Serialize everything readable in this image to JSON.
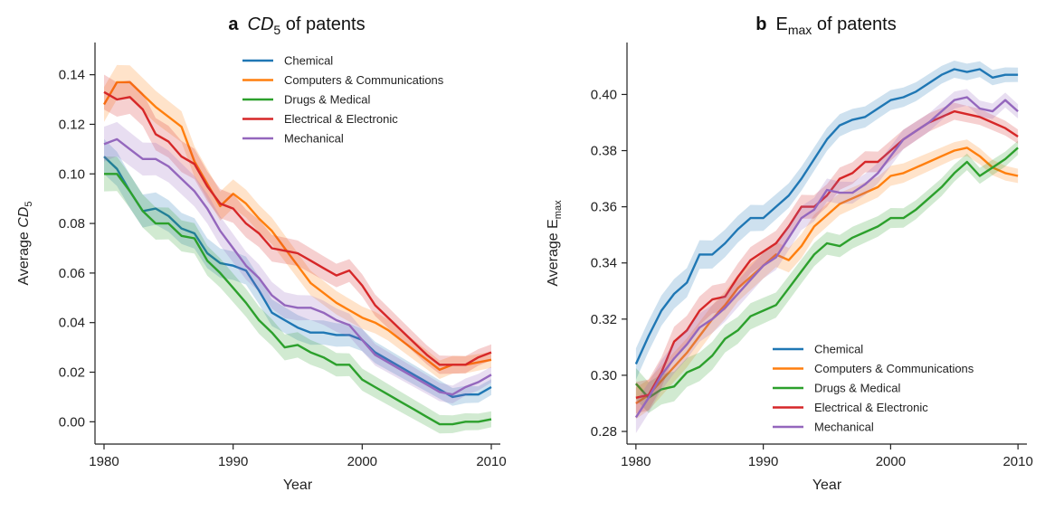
{
  "colors": {
    "Chemical": "#1f77b4",
    "Computers & Communications": "#ff7f0e",
    "Drugs & Medical": "#2ca02c",
    "Electrical & Electronic": "#d62728",
    "Mechanical": "#9467bd"
  },
  "chart_data": [
    {
      "type": "line",
      "panel_letter": "a",
      "title_main": "CD",
      "title_sub": "5",
      "title_rest": " of patents",
      "xlabel": "Year",
      "ylabel_main": "Average ",
      "ylabel_var": "CD",
      "ylabel_sub": "5",
      "xlim": [
        1979.3,
        2010.7
      ],
      "ylim": [
        -0.009,
        0.153
      ],
      "xticks": [
        1980,
        1990,
        2000,
        2010
      ],
      "yticks": [
        "0.00",
        "0.02",
        "0.04",
        "0.06",
        "0.08",
        "0.10",
        "0.12",
        "0.14"
      ],
      "legend_position": "top-right",
      "band": true,
      "x": [
        1980,
        1981,
        1982,
        1983,
        1984,
        1985,
        1986,
        1987,
        1988,
        1989,
        1990,
        1991,
        1992,
        1993,
        1994,
        1995,
        1996,
        1997,
        1998,
        1999,
        2000,
        2001,
        2002,
        2003,
        2004,
        2005,
        2006,
        2007,
        2008,
        2009,
        2010
      ],
      "series": [
        {
          "name": "Chemical",
          "values": [
            0.107,
            0.102,
            0.093,
            0.085,
            0.086,
            0.083,
            0.078,
            0.076,
            0.068,
            0.064,
            0.063,
            0.061,
            0.053,
            0.044,
            0.041,
            0.038,
            0.036,
            0.036,
            0.035,
            0.035,
            0.033,
            0.028,
            0.025,
            0.022,
            0.019,
            0.016,
            0.013,
            0.01,
            0.011,
            0.011,
            0.014
          ]
        },
        {
          "name": "Computers & Communications",
          "values": [
            0.128,
            0.137,
            0.137,
            0.132,
            0.127,
            0.123,
            0.119,
            0.105,
            0.096,
            0.087,
            0.092,
            0.088,
            0.082,
            0.077,
            0.07,
            0.063,
            0.056,
            0.052,
            0.048,
            0.045,
            0.042,
            0.04,
            0.037,
            0.033,
            0.029,
            0.025,
            0.021,
            0.023,
            0.023,
            0.024,
            0.025
          ]
        },
        {
          "name": "Drugs & Medical",
          "values": [
            0.1,
            0.1,
            0.093,
            0.085,
            0.08,
            0.08,
            0.075,
            0.074,
            0.065,
            0.06,
            0.054,
            0.048,
            0.041,
            0.036,
            0.03,
            0.031,
            0.028,
            0.026,
            0.023,
            0.023,
            0.017,
            0.014,
            0.011,
            0.008,
            0.005,
            0.002,
            -0.001,
            -0.001,
            0.0,
            0.0,
            0.001
          ]
        },
        {
          "name": "Electrical & Electronic",
          "values": [
            0.133,
            0.13,
            0.131,
            0.126,
            0.116,
            0.113,
            0.107,
            0.104,
            0.095,
            0.088,
            0.086,
            0.08,
            0.076,
            0.07,
            0.069,
            0.068,
            0.065,
            0.062,
            0.059,
            0.061,
            0.055,
            0.047,
            0.042,
            0.037,
            0.032,
            0.027,
            0.023,
            0.023,
            0.023,
            0.026,
            0.028
          ]
        },
        {
          "name": "Mechanical",
          "values": [
            0.112,
            0.114,
            0.11,
            0.106,
            0.106,
            0.103,
            0.098,
            0.093,
            0.086,
            0.077,
            0.07,
            0.063,
            0.058,
            0.051,
            0.047,
            0.046,
            0.046,
            0.044,
            0.041,
            0.039,
            0.033,
            0.027,
            0.024,
            0.021,
            0.018,
            0.015,
            0.012,
            0.011,
            0.014,
            0.016,
            0.019
          ]
        }
      ]
    },
    {
      "type": "line",
      "panel_letter": "b",
      "title_main": "E",
      "title_sub": "max",
      "title_rest": " of patents",
      "xlabel": "Year",
      "ylabel_main": "Average E",
      "ylabel_var": "",
      "ylabel_sub": "max",
      "xlim": [
        1979.3,
        2010.7
      ],
      "ylim": [
        0.2755,
        0.4185
      ],
      "xticks": [
        1980,
        1990,
        2000,
        2010
      ],
      "yticks": [
        "0.28",
        "0.30",
        "0.32",
        "0.34",
        "0.36",
        "0.38",
        "0.40"
      ],
      "legend_position": "bottom-right",
      "band": true,
      "x": [
        1980,
        1981,
        1982,
        1983,
        1984,
        1985,
        1986,
        1987,
        1988,
        1989,
        1990,
        1991,
        1992,
        1993,
        1994,
        1995,
        1996,
        1997,
        1998,
        1999,
        2000,
        2001,
        2002,
        2003,
        2004,
        2005,
        2006,
        2007,
        2008,
        2009,
        2010
      ],
      "series": [
        {
          "name": "Chemical",
          "values": [
            0.304,
            0.314,
            0.323,
            0.329,
            0.333,
            0.343,
            0.343,
            0.347,
            0.352,
            0.356,
            0.356,
            0.36,
            0.364,
            0.37,
            0.377,
            0.384,
            0.389,
            0.391,
            0.392,
            0.395,
            0.398,
            0.399,
            0.401,
            0.404,
            0.407,
            0.409,
            0.408,
            0.409,
            0.406,
            0.407,
            0.407
          ]
        },
        {
          "name": "Computers & Communications",
          "values": [
            0.29,
            0.293,
            0.298,
            0.303,
            0.308,
            0.314,
            0.32,
            0.325,
            0.331,
            0.335,
            0.339,
            0.343,
            0.341,
            0.346,
            0.353,
            0.357,
            0.361,
            0.363,
            0.365,
            0.367,
            0.371,
            0.372,
            0.374,
            0.376,
            0.378,
            0.38,
            0.381,
            0.378,
            0.374,
            0.372,
            0.371
          ]
        },
        {
          "name": "Drugs & Medical",
          "values": [
            0.297,
            0.292,
            0.295,
            0.296,
            0.301,
            0.303,
            0.307,
            0.313,
            0.316,
            0.321,
            0.323,
            0.325,
            0.331,
            0.337,
            0.343,
            0.347,
            0.346,
            0.349,
            0.351,
            0.353,
            0.356,
            0.356,
            0.359,
            0.363,
            0.367,
            0.372,
            0.376,
            0.371,
            0.374,
            0.377,
            0.381
          ]
        },
        {
          "name": "Electrical & Electronic",
          "values": [
            0.292,
            0.293,
            0.301,
            0.312,
            0.316,
            0.323,
            0.327,
            0.328,
            0.335,
            0.341,
            0.344,
            0.347,
            0.353,
            0.36,
            0.36,
            0.364,
            0.37,
            0.372,
            0.376,
            0.376,
            0.38,
            0.384,
            0.387,
            0.39,
            0.392,
            0.394,
            0.393,
            0.392,
            0.39,
            0.388,
            0.385
          ]
        },
        {
          "name": "Mechanical",
          "values": [
            0.285,
            0.292,
            0.3,
            0.306,
            0.311,
            0.317,
            0.32,
            0.324,
            0.329,
            0.334,
            0.339,
            0.342,
            0.349,
            0.356,
            0.359,
            0.366,
            0.365,
            0.365,
            0.368,
            0.372,
            0.378,
            0.384,
            0.387,
            0.39,
            0.394,
            0.398,
            0.399,
            0.395,
            0.394,
            0.398,
            0.394
          ]
        }
      ]
    }
  ]
}
